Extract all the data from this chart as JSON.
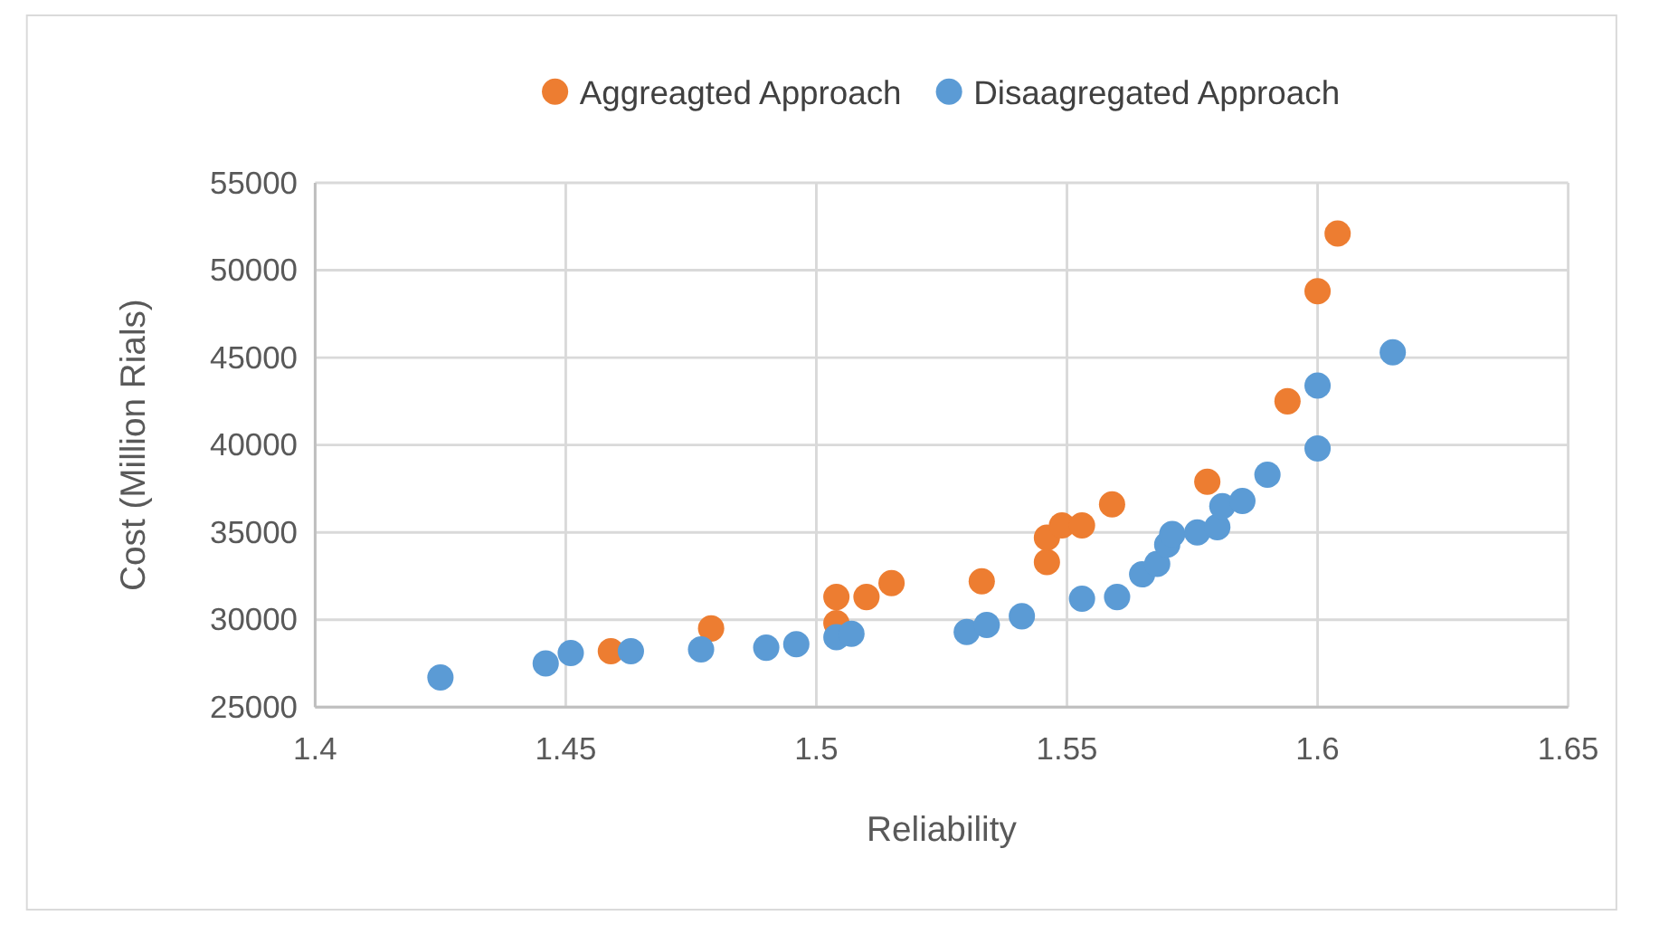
{
  "chart_data": {
    "type": "scatter",
    "xlabel": "Reliability",
    "ylabel": "Cost (Million Rials)",
    "xlim": [
      1.4,
      1.65
    ],
    "xticks": [
      1.4,
      1.45,
      1.5,
      1.55,
      1.6,
      1.65
    ],
    "ylim": [
      25000,
      55000
    ],
    "yticks": [
      25000,
      30000,
      35000,
      40000,
      45000,
      50000,
      55000
    ],
    "grid": true,
    "legend": "top",
    "marker": "circle",
    "series": [
      {
        "name": "Aggreagted Approach",
        "color": "#ed7d31",
        "x": [
          1.459,
          1.479,
          1.504,
          1.504,
          1.51,
          1.515,
          1.533,
          1.546,
          1.546,
          1.549,
          1.553,
          1.559,
          1.578,
          1.594,
          1.6,
          1.604
        ],
        "values": [
          28200,
          29500,
          29800,
          31300,
          31300,
          32100,
          32200,
          33300,
          34700,
          35400,
          35400,
          36600,
          37900,
          42500,
          48800,
          52100
        ]
      },
      {
        "name": "Disaagregated Approach",
        "color": "#5b9bd5",
        "x": [
          1.425,
          1.446,
          1.451,
          1.463,
          1.477,
          1.49,
          1.496,
          1.504,
          1.507,
          1.53,
          1.534,
          1.541,
          1.553,
          1.56,
          1.565,
          1.568,
          1.57,
          1.571,
          1.576,
          1.58,
          1.581,
          1.585,
          1.59,
          1.6,
          1.6,
          1.615
        ],
        "values": [
          26700,
          27500,
          28100,
          28200,
          28300,
          28400,
          28600,
          29000,
          29200,
          29300,
          29700,
          30200,
          31200,
          31300,
          32600,
          33200,
          34300,
          34900,
          35000,
          35300,
          36500,
          36800,
          38300,
          39800,
          43400,
          45300
        ]
      }
    ]
  }
}
